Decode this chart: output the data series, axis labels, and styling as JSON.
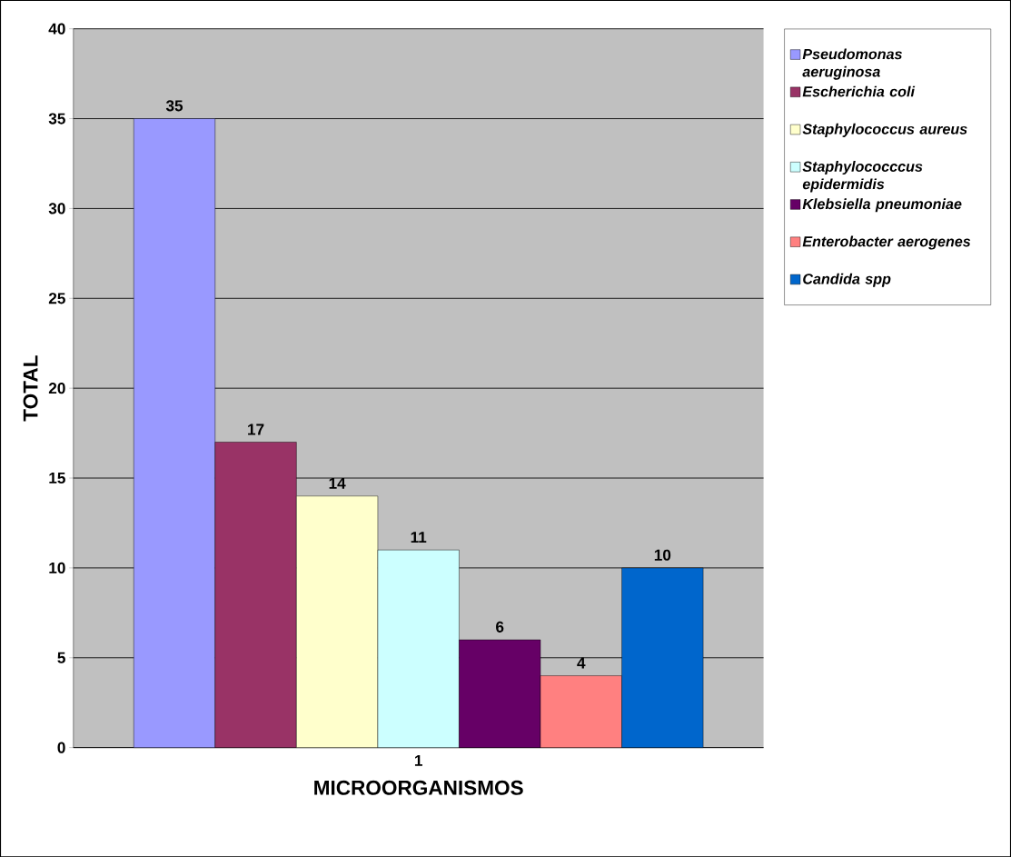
{
  "chart_data": {
    "type": "bar",
    "xlabel": "MICROORGANISMOS",
    "ylabel": "TOTAL",
    "categories": [
      "1"
    ],
    "series": [
      {
        "name": "*Pseudomonas aeruginosa*",
        "color": "#9999ff",
        "values": [
          35
        ]
      },
      {
        "name": "*Escherichia coli*",
        "color": "#993366",
        "values": [
          17
        ]
      },
      {
        "name": "*Staphylococcus aureus*",
        "color": "#ffffcc",
        "values": [
          14
        ]
      },
      {
        "name": "*Staphylococccus epidermidis*",
        "color": "#ccffff",
        "values": [
          11
        ]
      },
      {
        "name": "*Klebsiella pneumoniae*",
        "color": "#660066",
        "values": [
          6
        ]
      },
      {
        "name": "*Enterobacter aerogenes*",
        "color": "#ff8080",
        "values": [
          4
        ]
      },
      {
        "name": "*Candida spp*",
        "color": "#0066cc",
        "values": [
          10
        ]
      }
    ],
    "ylim": [
      0,
      40
    ],
    "yticks": [
      0,
      5,
      10,
      15,
      20,
      25,
      30,
      35,
      40
    ],
    "grid": "y",
    "legend": "right",
    "data_labels": true
  }
}
